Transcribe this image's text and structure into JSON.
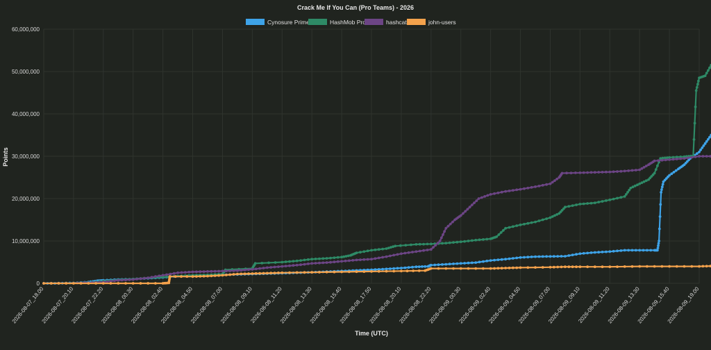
{
  "chart_data": {
    "type": "line",
    "title": "Crack Me If You Can (Pro Teams) - 2026",
    "xlabel": "Time (UTC)",
    "ylabel": "Points",
    "ylim": [
      0,
      60000000
    ],
    "yticks": [
      0,
      10000000,
      20000000,
      30000000,
      40000000,
      50000000,
      60000000
    ],
    "ytick_labels": [
      "0",
      "10,000,000",
      "20,000,000",
      "30,000,000",
      "40,000,000",
      "50,000,000",
      "60,000,000"
    ],
    "xticks": [
      "2026-08-07_18.00",
      "2026-08-07_20.10",
      "2026-08-07_22.20",
      "2026-08-08_00.30",
      "2026-08-08_02.40",
      "2026-08-08_04.50",
      "2026-08-08_07.00",
      "2026-08-08_09.10",
      "2026-08-08_11.20",
      "2026-08-08_13.30",
      "2026-08-08_15.40",
      "2026-08-08_17.50",
      "2026-08-08_20.10",
      "2026-08-08_22.20",
      "2026-08-09_00.30",
      "2026-08-09_02.40",
      "2026-08-09_04.50",
      "2026-08-09_07.00",
      "2026-08-09_09.10",
      "2026-08-09_11.20",
      "2026-08-09_13.30",
      "2026-08-09_15.40",
      "2026-08-09_19.00"
    ],
    "grid": true,
    "legend_position": "top",
    "series": [
      {
        "name": "Cynosure Prime",
        "color": "#3ea3e8",
        "points": [
          [
            0,
            0
          ],
          [
            0.5,
            0
          ],
          [
            1,
            100000
          ],
          [
            1.5,
            300000
          ],
          [
            1.8,
            600000
          ],
          [
            2,
            700000
          ],
          [
            2.5,
            900000
          ],
          [
            3,
            1000000
          ],
          [
            3.5,
            1200000
          ],
          [
            4,
            1400000
          ],
          [
            4.5,
            1700000
          ],
          [
            5,
            1800000
          ],
          [
            5.5,
            1900000
          ],
          [
            6,
            2000000
          ],
          [
            6.5,
            2100000
          ],
          [
            7,
            2200000
          ],
          [
            7.5,
            2300000
          ],
          [
            8,
            2400000
          ],
          [
            8.5,
            2500000
          ],
          [
            9,
            2600000
          ],
          [
            9.5,
            2750000
          ],
          [
            10,
            2900000
          ],
          [
            10.5,
            3050000
          ],
          [
            11,
            3200000
          ],
          [
            11.5,
            3400000
          ],
          [
            12,
            3600000
          ],
          [
            12.5,
            3900000
          ],
          [
            12.9,
            4000000
          ],
          [
            13,
            4300000
          ],
          [
            13.5,
            4500000
          ],
          [
            14,
            4700000
          ],
          [
            14.5,
            4900000
          ],
          [
            15,
            5400000
          ],
          [
            15.5,
            5700000
          ],
          [
            16,
            6100000
          ],
          [
            16.5,
            6300000
          ],
          [
            17,
            6350000
          ],
          [
            17.5,
            6400000
          ],
          [
            18,
            7000000
          ],
          [
            18.5,
            7300000
          ],
          [
            19,
            7500000
          ],
          [
            19.5,
            7800000
          ],
          [
            20,
            7800000
          ],
          [
            20.5,
            7800000
          ],
          [
            20.6,
            7800000
          ],
          [
            20.65,
            10000000
          ],
          [
            20.72,
            21500000
          ],
          [
            20.8,
            24000000
          ],
          [
            21,
            25500000
          ],
          [
            21.3,
            27000000
          ],
          [
            21.5,
            28000000
          ],
          [
            21.7,
            29500000
          ],
          [
            22,
            31000000
          ],
          [
            22.2,
            33000000
          ],
          [
            22.4,
            35000000
          ],
          [
            22.6,
            37000000
          ],
          [
            22.8,
            37500000
          ],
          [
            23,
            37500000
          ]
        ]
      },
      {
        "name": "HashMob Pro",
        "color": "#2e8a66",
        "points": [
          [
            0,
            0
          ],
          [
            1,
            100000
          ],
          [
            1.5,
            200000
          ],
          [
            2,
            500000
          ],
          [
            2.5,
            800000
          ],
          [
            3,
            1000000
          ],
          [
            3.5,
            1300000
          ],
          [
            4,
            1500000
          ],
          [
            4.5,
            1700000
          ],
          [
            5,
            1900000
          ],
          [
            5.5,
            2000000
          ],
          [
            6,
            2200000
          ],
          [
            6.1,
            3200000
          ],
          [
            7,
            3500000
          ],
          [
            7.1,
            4700000
          ],
          [
            8,
            5000000
          ],
          [
            8.5,
            5300000
          ],
          [
            9,
            5700000
          ],
          [
            9.5,
            5900000
          ],
          [
            10,
            6200000
          ],
          [
            10.3,
            6600000
          ],
          [
            10.5,
            7200000
          ],
          [
            11,
            7800000
          ],
          [
            11.5,
            8200000
          ],
          [
            11.8,
            8800000
          ],
          [
            12.5,
            9200000
          ],
          [
            13,
            9300000
          ],
          [
            13.5,
            9500000
          ],
          [
            14,
            9800000
          ],
          [
            14.5,
            10200000
          ],
          [
            15,
            10500000
          ],
          [
            15.2,
            11000000
          ],
          [
            15.5,
            13000000
          ],
          [
            16,
            13800000
          ],
          [
            16.5,
            14500000
          ],
          [
            17,
            15500000
          ],
          [
            17.3,
            16500000
          ],
          [
            17.5,
            18000000
          ],
          [
            18,
            18700000
          ],
          [
            18.5,
            19000000
          ],
          [
            19,
            19700000
          ],
          [
            19.5,
            20500000
          ],
          [
            19.7,
            22500000
          ],
          [
            20,
            23500000
          ],
          [
            20.3,
            24500000
          ],
          [
            20.5,
            26000000
          ],
          [
            20.7,
            29500000
          ],
          [
            21,
            29700000
          ],
          [
            21.5,
            29900000
          ],
          [
            21.8,
            30100000
          ],
          [
            21.9,
            45500000
          ],
          [
            22,
            48500000
          ],
          [
            22.2,
            49000000
          ],
          [
            22.4,
            51500000
          ],
          [
            22.6,
            52500000
          ],
          [
            22.8,
            53200000
          ],
          [
            23,
            53200000
          ]
        ]
      },
      {
        "name": "hashcat",
        "color": "#6c4585",
        "points": [
          [
            0,
            0
          ],
          [
            1,
            50000
          ],
          [
            1.5,
            150000
          ],
          [
            2,
            300000
          ],
          [
            2.5,
            700000
          ],
          [
            3,
            900000
          ],
          [
            3.5,
            1300000
          ],
          [
            4,
            1900000
          ],
          [
            4.5,
            2500000
          ],
          [
            5,
            2700000
          ],
          [
            5.5,
            2800000
          ],
          [
            6,
            2900000
          ],
          [
            6.5,
            3000000
          ],
          [
            7,
            3300000
          ],
          [
            7.5,
            3700000
          ],
          [
            8,
            4000000
          ],
          [
            8.5,
            4300000
          ],
          [
            9,
            4700000
          ],
          [
            9.5,
            4900000
          ],
          [
            10,
            5200000
          ],
          [
            10.5,
            5500000
          ],
          [
            11,
            5700000
          ],
          [
            11.5,
            6300000
          ],
          [
            12,
            7000000
          ],
          [
            12.5,
            7500000
          ],
          [
            13,
            8000000
          ],
          [
            13.3,
            10000000
          ],
          [
            13.5,
            13000000
          ],
          [
            13.8,
            15000000
          ],
          [
            14,
            16000000
          ],
          [
            14.3,
            18000000
          ],
          [
            14.6,
            20000000
          ],
          [
            15,
            21000000
          ],
          [
            15.5,
            21700000
          ],
          [
            16,
            22200000
          ],
          [
            16.5,
            22800000
          ],
          [
            17,
            23500000
          ],
          [
            17.3,
            25000000
          ],
          [
            17.4,
            26000000
          ],
          [
            18,
            26100000
          ],
          [
            18.5,
            26200000
          ],
          [
            19,
            26300000
          ],
          [
            19.5,
            26500000
          ],
          [
            20,
            26800000
          ],
          [
            20.3,
            28000000
          ],
          [
            20.5,
            28900000
          ],
          [
            21,
            29200000
          ],
          [
            21.5,
            29500000
          ],
          [
            22,
            30000000
          ],
          [
            22.5,
            30000000
          ],
          [
            23,
            30000000
          ]
        ]
      },
      {
        "name": "john-users",
        "color": "#f4a24c",
        "points": [
          [
            0,
            0
          ],
          [
            1,
            0
          ],
          [
            2,
            0
          ],
          [
            3,
            0
          ],
          [
            4,
            0
          ],
          [
            4.2,
            100000
          ],
          [
            4.23,
            1600000
          ],
          [
            5,
            1600000
          ],
          [
            5.5,
            1700000
          ],
          [
            6,
            1900000
          ],
          [
            6.5,
            2200000
          ],
          [
            7,
            2300000
          ],
          [
            7.5,
            2400000
          ],
          [
            8,
            2500000
          ],
          [
            9,
            2600000
          ],
          [
            10,
            2700000
          ],
          [
            11,
            2800000
          ],
          [
            12,
            2900000
          ],
          [
            12.8,
            3000000
          ],
          [
            13,
            3500000
          ],
          [
            14,
            3500000
          ],
          [
            15,
            3500000
          ],
          [
            15.5,
            3600000
          ],
          [
            16,
            3700000
          ],
          [
            17,
            3800000
          ],
          [
            17.5,
            3900000
          ],
          [
            18,
            3900000
          ],
          [
            19,
            3900000
          ],
          [
            20,
            4000000
          ],
          [
            21,
            4000000
          ],
          [
            22,
            4000000
          ],
          [
            22.5,
            4100000
          ],
          [
            23,
            4200000
          ]
        ]
      }
    ]
  }
}
